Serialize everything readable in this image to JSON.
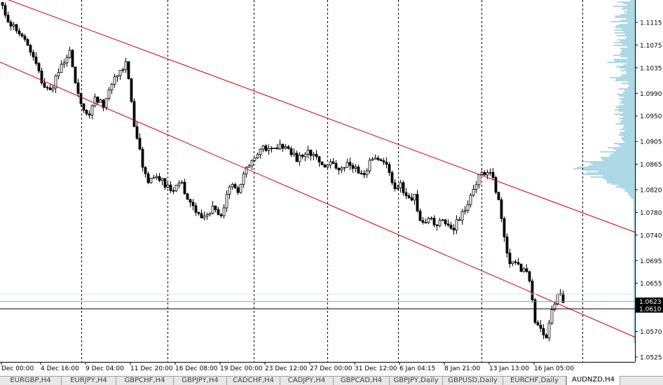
{
  "chart_data": {
    "type": "candlestick",
    "symbol": "AUDNZD",
    "timeframe": "H4",
    "ylim": [
      1.051,
      1.1155
    ],
    "y_ticks": [
      "1.1115",
      "1.1075",
      "1.1035",
      "1.0990",
      "1.0950",
      "1.0905",
      "1.0865",
      "1.0820",
      "1.0780",
      "1.0740",
      "1.0695",
      "1.0655",
      "1.0570",
      "1.0525"
    ],
    "x_ticks": [
      "Dec 00:00",
      "4 Dec 16:00",
      "9 Dec 04:00",
      "11 Dec 20:00",
      "16 Dec 08:00",
      "19 Dec 00:00",
      "23 Dec 12:00",
      "27 Dec 00:00",
      "31 Dec 12:00",
      "6 Jan 04:15",
      "8 Jan 21:00",
      "13 Jan 13:00",
      "16 Jan 05:00"
    ],
    "price_labels": {
      "ask": "1.0623",
      "bid": "1.0610"
    },
    "price_path": [
      [
        0,
        1.115
      ],
      [
        8,
        1.112
      ],
      [
        20,
        1.1105
      ],
      [
        35,
        1.1085
      ],
      [
        50,
        1.104
      ],
      [
        60,
        1.1
      ],
      [
        72,
        1.0995
      ],
      [
        85,
        1.104
      ],
      [
        98,
        1.106
      ],
      [
        104,
        1.102
      ],
      [
        110,
        1.0985
      ],
      [
        118,
        1.096
      ],
      [
        126,
        1.095
      ],
      [
        134,
        1.0985
      ],
      [
        146,
        1.097
      ],
      [
        158,
        1.101
      ],
      [
        170,
        1.103
      ],
      [
        178,
        1.1045
      ],
      [
        184,
        1.1
      ],
      [
        188,
        1.094
      ],
      [
        196,
        1.09
      ],
      [
        204,
        1.085
      ],
      [
        210,
        1.083
      ],
      [
        220,
        1.085
      ],
      [
        234,
        1.083
      ],
      [
        246,
        1.0815
      ],
      [
        256,
        1.084
      ],
      [
        266,
        1.08
      ],
      [
        276,
        1.079
      ],
      [
        286,
        1.077
      ],
      [
        296,
        1.078
      ],
      [
        306,
        1.079
      ],
      [
        314,
        1.077
      ],
      [
        320,
        1.08
      ],
      [
        328,
        1.083
      ],
      [
        338,
        1.082
      ],
      [
        348,
        1.085
      ],
      [
        356,
        1.087
      ],
      [
        366,
        1.088
      ],
      [
        376,
        1.0895
      ],
      [
        388,
        1.089
      ],
      [
        398,
        1.09
      ],
      [
        410,
        1.089
      ],
      [
        422,
        1.0875
      ],
      [
        436,
        1.0885
      ],
      [
        448,
        1.088
      ],
      [
        458,
        1.086
      ],
      [
        470,
        1.0865
      ],
      [
        482,
        1.086
      ],
      [
        494,
        1.0865
      ],
      [
        506,
        1.0855
      ],
      [
        516,
        1.084
      ],
      [
        526,
        1.087
      ],
      [
        540,
        1.088
      ],
      [
        552,
        1.086
      ],
      [
        560,
        1.082
      ],
      [
        570,
        1.083
      ],
      [
        580,
        1.08
      ],
      [
        590,
        1.081
      ],
      [
        598,
        1.076
      ],
      [
        610,
        1.077
      ],
      [
        622,
        1.076
      ],
      [
        634,
        1.0765
      ],
      [
        644,
        1.075
      ],
      [
        654,
        1.077
      ],
      [
        664,
        1.079
      ],
      [
        672,
        1.081
      ],
      [
        680,
        1.084
      ],
      [
        690,
        1.085
      ],
      [
        700,
        1.0845
      ],
      [
        706,
        1.082
      ],
      [
        712,
        1.079
      ],
      [
        718,
        1.074
      ],
      [
        724,
        1.069
      ],
      [
        732,
        1.0695
      ],
      [
        742,
        1.068
      ],
      [
        750,
        1.067
      ],
      [
        756,
        1.066
      ],
      [
        760,
        1.059
      ],
      [
        766,
        1.058
      ],
      [
        772,
        1.057
      ],
      [
        778,
        1.0555
      ],
      [
        784,
        1.06
      ],
      [
        790,
        1.062
      ],
      [
        796,
        1.064
      ],
      [
        802,
        1.0625
      ],
      [
        806,
        1.0623
      ]
    ],
    "channel_upper": [
      [
        0.5,
        1.116
      ],
      [
        906,
        1.0745
      ]
    ],
    "channel_lower": [
      [
        0,
        1.1045
      ],
      [
        906,
        1.056
      ]
    ],
    "profile_peak": 1.086
  },
  "tabs": [
    {
      "label": "EURGBP,H4",
      "w": 88
    },
    {
      "label": "EURJPY,H4",
      "w": 78
    },
    {
      "label": "GBPCHF,H4",
      "w": 82
    },
    {
      "label": "GBPJPY,H4",
      "w": 76
    },
    {
      "label": "CADCHF,H4",
      "w": 76
    },
    {
      "label": "CADJPY,H4",
      "w": 76
    },
    {
      "label": "GBPCAD,H4",
      "w": 80
    },
    {
      "label": "GBPJPY,Daily",
      "w": 76
    },
    {
      "label": "GBPUSD,Daily",
      "w": 86
    },
    {
      "label": "EURCHF,Daily",
      "w": 90
    },
    {
      "label": "AUDNZD,H4",
      "w": 76,
      "active": true
    }
  ],
  "colors": {
    "bull": "#ffffff",
    "bear": "#000000",
    "channel": "#cc0000",
    "ask_line": "#40c0d8",
    "profile": "#add8e6"
  }
}
